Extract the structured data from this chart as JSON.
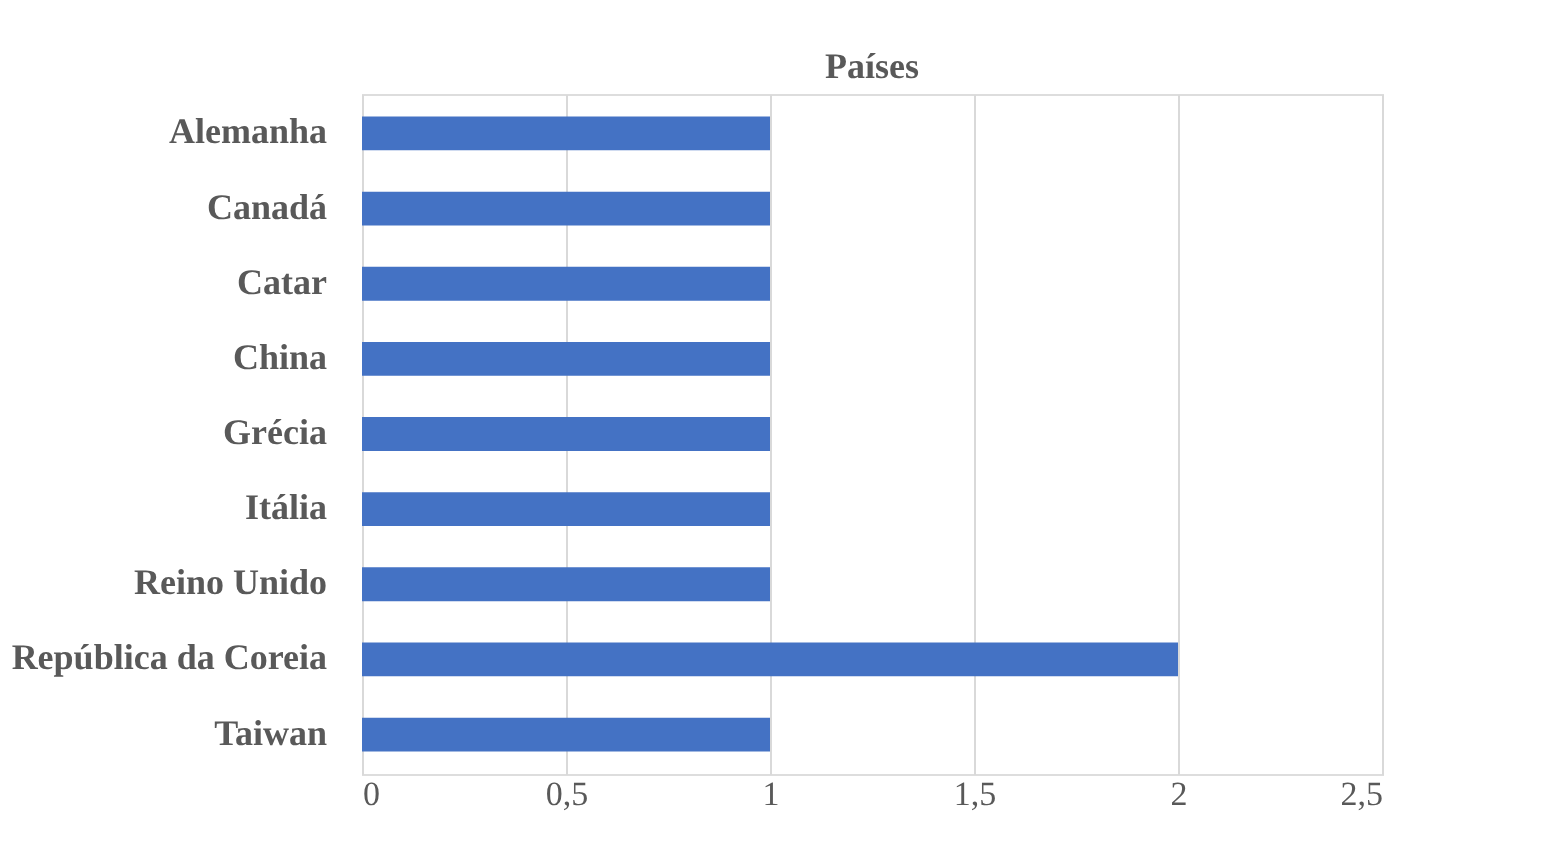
{
  "chart_data": {
    "type": "bar",
    "orientation": "horizontal",
    "title": "Países",
    "categories": [
      "Alemanha",
      "Canadá",
      "Catar",
      "China",
      "Grécia",
      "Itália",
      "Reino Unido",
      "República da Coreia",
      "Taiwan"
    ],
    "values": [
      1,
      1,
      1,
      1,
      1,
      1,
      1,
      2,
      1
    ],
    "color": "#4472c4",
    "xlim": [
      0,
      2.5
    ],
    "xticks": [
      0,
      {
        "value": 0.5,
        "label": "0,5"
      },
      1,
      {
        "value": 1.5,
        "label": "1,5"
      },
      2,
      {
        "value": 2.5,
        "label": "2,5"
      }
    ],
    "grid": "x"
  }
}
